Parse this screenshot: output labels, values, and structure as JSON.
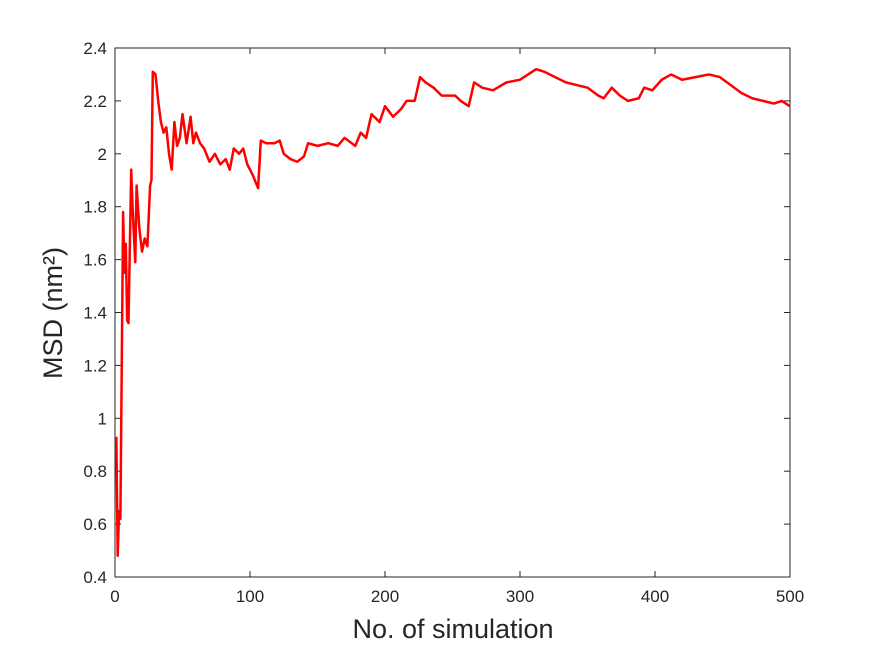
{
  "chart_data": {
    "type": "line",
    "xlabel": "No. of simulation",
    "ylabel": "MSD (nm²)",
    "xlim": [
      0,
      500
    ],
    "xticks": [
      0,
      100,
      200,
      300,
      400,
      500
    ],
    "ylim": [
      0.4,
      2.4
    ],
    "yticks": [
      0.4,
      0.6,
      0.8,
      1,
      1.2,
      1.4,
      1.6,
      1.8,
      2,
      2.2,
      2.4
    ],
    "series": [
      {
        "color": "#ff0000",
        "x": [
          1,
          2,
          3,
          4,
          5,
          6,
          7,
          8,
          9,
          10,
          12,
          13,
          15,
          16,
          18,
          20,
          22,
          24,
          26,
          27,
          28,
          30,
          32,
          34,
          36,
          38,
          40,
          42,
          44,
          46,
          48,
          50,
          53,
          56,
          58,
          60,
          63,
          66,
          70,
          74,
          78,
          82,
          85,
          88,
          92,
          95,
          98,
          102,
          106,
          108,
          112,
          118,
          122,
          125,
          130,
          135,
          140,
          143,
          150,
          158,
          165,
          170,
          178,
          182,
          186,
          190,
          196,
          200,
          206,
          212,
          216,
          222,
          226,
          230,
          236,
          242,
          248,
          252,
          256,
          262,
          266,
          272,
          280,
          290,
          300,
          306,
          312,
          318,
          326,
          334,
          342,
          350,
          358,
          362,
          368,
          374,
          380,
          388,
          392,
          398,
          405,
          412,
          420,
          430,
          440,
          448,
          456,
          464,
          472,
          480,
          488,
          494,
          500
        ],
        "values": [
          0.93,
          0.48,
          0.65,
          0.62,
          1.2,
          1.78,
          1.55,
          1.66,
          1.37,
          1.36,
          1.94,
          1.8,
          1.59,
          1.88,
          1.72,
          1.63,
          1.68,
          1.65,
          1.88,
          1.9,
          2.31,
          2.3,
          2.2,
          2.12,
          2.08,
          2.1,
          2.0,
          1.94,
          2.12,
          2.03,
          2.06,
          2.15,
          2.04,
          2.14,
          2.04,
          2.08,
          2.04,
          2.02,
          1.97,
          2.0,
          1.96,
          1.98,
          1.94,
          2.02,
          2.0,
          2.02,
          1.96,
          1.92,
          1.87,
          2.05,
          2.04,
          2.04,
          2.05,
          2.0,
          1.98,
          1.97,
          1.99,
          2.04,
          2.03,
          2.04,
          2.03,
          2.06,
          2.03,
          2.08,
          2.06,
          2.15,
          2.12,
          2.18,
          2.14,
          2.17,
          2.2,
          2.2,
          2.29,
          2.27,
          2.25,
          2.22,
          2.22,
          2.22,
          2.2,
          2.18,
          2.27,
          2.25,
          2.24,
          2.27,
          2.28,
          2.3,
          2.32,
          2.31,
          2.29,
          2.27,
          2.26,
          2.25,
          2.22,
          2.21,
          2.25,
          2.22,
          2.2,
          2.21,
          2.25,
          2.24,
          2.28,
          2.3,
          2.28,
          2.29,
          2.3,
          2.29,
          2.26,
          2.23,
          2.21,
          2.2,
          2.19,
          2.2,
          2.18
        ]
      }
    ]
  }
}
